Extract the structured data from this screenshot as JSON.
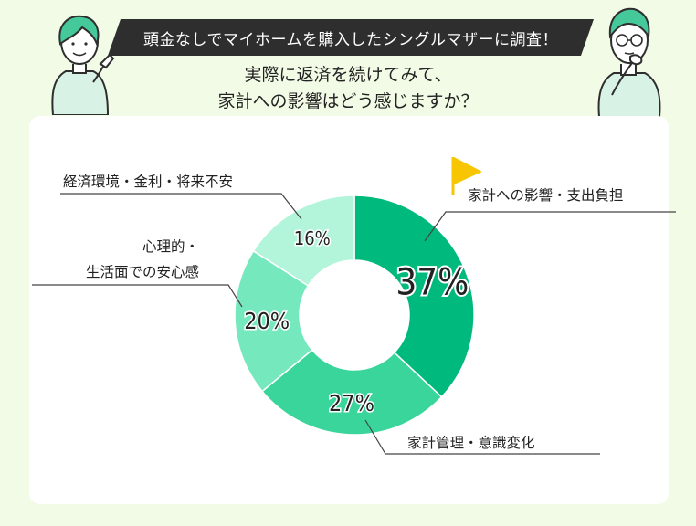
{
  "header": {
    "banner": "頭金なしでマイホームを購入したシングルマザーに調査！",
    "question_line1": "実際に返済を続けてみて、",
    "question_line2": "家計への影響はどう感じますか？"
  },
  "chart_data": {
    "type": "pie",
    "donut": true,
    "slices": [
      {
        "label": "家計への影響・支出負担",
        "value": 37,
        "value_label": "37%",
        "color": "#00b97c",
        "text_color": "#222222"
      },
      {
        "label": "家計管理・意識変化",
        "value": 27,
        "value_label": "27%",
        "color": "#39d59b",
        "text_color": "#222222"
      },
      {
        "label": "心理的・生活面での安心感",
        "label_lines": [
          "心理的・",
          "生活面での安心感"
        ],
        "value": 20,
        "value_label": "20%",
        "color": "#75e8be",
        "text_color": "#222222"
      },
      {
        "label": "経済環境・金利・将来不安",
        "value": 16,
        "value_label": "16%",
        "color": "#b3f5da",
        "text_color": "#222222"
      }
    ],
    "start_angle_deg": 0,
    "direction": "clockwise"
  },
  "colors": {
    "background": "#f2fbe6",
    "card": "#ffffff",
    "banner": "#2e2e2e",
    "flag": "#f7c600",
    "leader_line": "#444444"
  },
  "icons": {
    "flag": "flag-icon",
    "person_left": "woman-pointing-illustration",
    "person_right": "man-thinking-illustration"
  }
}
